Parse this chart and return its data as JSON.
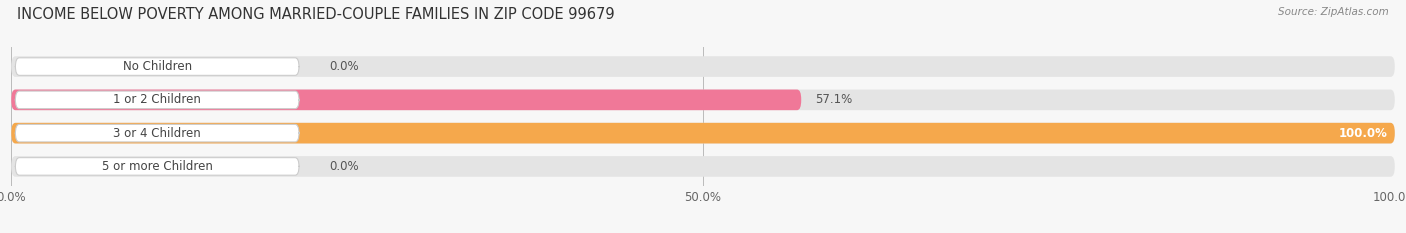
{
  "title": "INCOME BELOW POVERTY AMONG MARRIED-COUPLE FAMILIES IN ZIP CODE 99679",
  "source": "Source: ZipAtlas.com",
  "categories": [
    "No Children",
    "1 or 2 Children",
    "3 or 4 Children",
    "5 or more Children"
  ],
  "values": [
    0.0,
    57.1,
    100.0,
    0.0
  ],
  "bar_colors": [
    "#a8b0de",
    "#f07898",
    "#f5a84c",
    "#f0a098"
  ],
  "bg_color": "#f7f7f7",
  "bar_bg_color": "#e4e4e4",
  "xlim": [
    0,
    100
  ],
  "xticks": [
    0,
    50,
    100
  ],
  "xtick_labels": [
    "0.0%",
    "50.0%",
    "100.0%"
  ],
  "title_fontsize": 10.5,
  "bar_height": 0.62,
  "cat_label_fontsize": 8.5,
  "val_label_fontsize": 8.5
}
